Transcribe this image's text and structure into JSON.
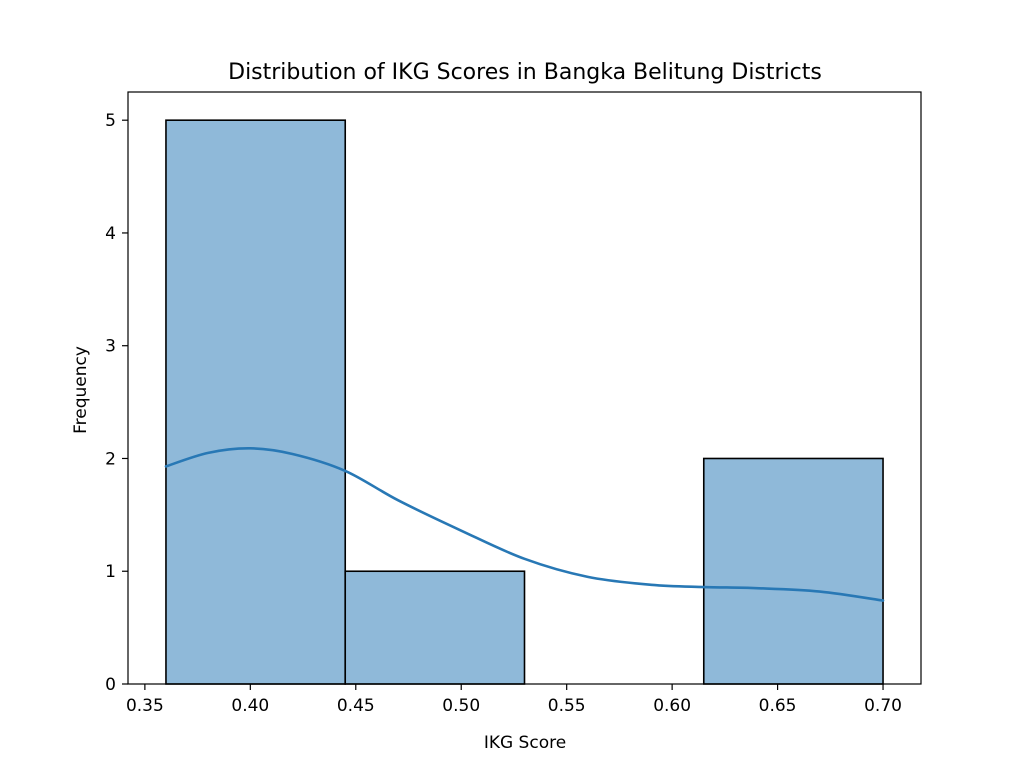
{
  "chart_data": {
    "type": "bar",
    "title": "Distribution of IKG Scores in Bangka Belitung Districts",
    "xlabel": "IKG Score",
    "ylabel": "Frequency",
    "xlim": [
      0.342,
      0.718
    ],
    "ylim": [
      0,
      5.25
    ],
    "x_ticks": [
      0.35,
      0.4,
      0.45,
      0.5,
      0.55,
      0.6,
      0.65,
      0.7
    ],
    "x_tick_labels": [
      "0.35",
      "0.40",
      "0.45",
      "0.50",
      "0.55",
      "0.60",
      "0.65",
      "0.70"
    ],
    "y_ticks": [
      0,
      1,
      2,
      3,
      4,
      5
    ],
    "y_tick_labels": [
      "0",
      "1",
      "2",
      "3",
      "4",
      "5"
    ],
    "bins": [
      {
        "x0": 0.36,
        "x1": 0.445,
        "count": 5
      },
      {
        "x0": 0.445,
        "x1": 0.53,
        "count": 1
      },
      {
        "x0": 0.53,
        "x1": 0.615,
        "count": 0
      },
      {
        "x0": 0.615,
        "x1": 0.7,
        "count": 2
      }
    ],
    "kde": {
      "x": [
        0.36,
        0.38,
        0.4,
        0.42,
        0.445,
        0.47,
        0.5,
        0.53,
        0.56,
        0.59,
        0.615,
        0.64,
        0.67,
        0.7
      ],
      "y": [
        1.93,
        2.05,
        2.09,
        2.04,
        1.89,
        1.63,
        1.36,
        1.11,
        0.95,
        0.88,
        0.86,
        0.85,
        0.82,
        0.74
      ]
    },
    "grid": false,
    "legend": "none",
    "colors": {
      "bar_fill": "#8fb9d9",
      "bar_edge": "#000000",
      "kde_line": "#2878b5"
    }
  }
}
